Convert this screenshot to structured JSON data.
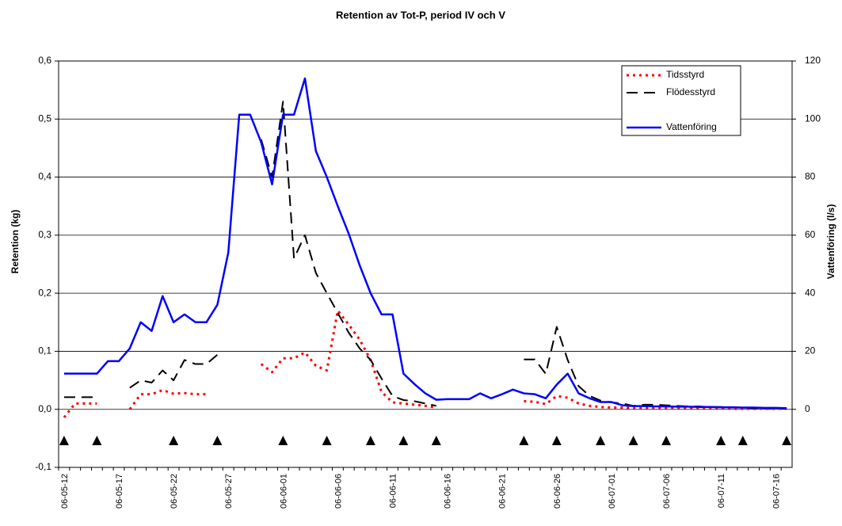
{
  "chart_data": {
    "type": "line",
    "title": "Retention av Tot-P, period IV och V",
    "ylabel": "Retention (kg)",
    "y2label": "Vattenföring (l/s)",
    "categories": [
      "06-05-12",
      null,
      null,
      null,
      null,
      "06-05-17",
      null,
      null,
      null,
      null,
      "06-05-22",
      null,
      null,
      null,
      null,
      "06-05-27",
      null,
      null,
      null,
      null,
      "06-06-01",
      null,
      null,
      null,
      null,
      "06-06-06",
      null,
      null,
      null,
      null,
      "06-06-11",
      null,
      null,
      null,
      null,
      "06-06-16",
      null,
      null,
      null,
      null,
      "06-06-21",
      null,
      null,
      null,
      null,
      "06-06-26",
      null,
      null,
      null,
      null,
      "06-07-01",
      null,
      null,
      null,
      null,
      "06-07-06",
      null,
      null,
      null,
      null,
      "06-07-11",
      null,
      null,
      null,
      null,
      "06-07-16",
      null
    ],
    "ylim": [
      -0.1,
      0.6
    ],
    "yticks": [
      {
        "value": -0.1,
        "label": "-0,1"
      },
      {
        "value": 0,
        "label": "0,0"
      },
      {
        "value": 0.1,
        "label": "0,1"
      },
      {
        "value": 0.2,
        "label": "0,2"
      },
      {
        "value": 0.3,
        "label": "0,3"
      },
      {
        "value": 0.4,
        "label": "0,4"
      },
      {
        "value": 0.5,
        "label": "0,5"
      },
      {
        "value": 0.6,
        "label": "0,6"
      }
    ],
    "y2lim": [
      -20,
      120
    ],
    "y2ticks": [
      0,
      20,
      40,
      60,
      80,
      100,
      120
    ],
    "grid": true,
    "legend": "upper right",
    "series": [
      {
        "name": "Tidsstyrd",
        "color": "#ff0000",
        "style": "dotted",
        "values": [
          -0.014,
          0.01,
          0.01,
          0.01,
          null,
          null,
          0,
          0.026,
          0.026,
          0.033,
          0.027,
          0.028,
          0.026,
          0.026,
          null,
          null,
          null,
          null,
          0.078,
          0.064,
          0.088,
          0.088,
          0.098,
          0.075,
          0.067,
          0.17,
          0.146,
          0.12,
          0.085,
          0.03,
          0.012,
          0.01,
          0.008,
          0.006,
          0.003,
          null,
          null,
          null,
          null,
          null,
          null,
          null,
          0.014,
          0.013,
          0.009,
          0.023,
          0.02,
          0.01,
          0.006,
          0.004,
          0.003,
          0.003,
          0.002,
          0.002,
          0.002,
          0.002,
          0.002,
          0.002,
          0.002,
          0.002,
          0.002,
          0.001,
          0.001,
          0.001,
          0.001,
          0.001,
          0.001
        ]
      },
      {
        "name": "Flödesstyrd",
        "color": "#000000",
        "style": "dashed",
        "values": [
          0.021,
          0.021,
          0.021,
          0.021,
          null,
          null,
          0.037,
          0.05,
          0.046,
          0.067,
          0.05,
          0.085,
          0.078,
          0.078,
          0.094,
          null,
          null,
          null,
          0.465,
          0.4,
          0.53,
          0.26,
          0.3,
          0.235,
          0.2,
          0.166,
          0.132,
          0.105,
          0.085,
          0.053,
          0.023,
          0.016,
          0.014,
          0.01,
          0.006,
          null,
          null,
          null,
          null,
          null,
          null,
          null,
          0.086,
          0.086,
          0.061,
          0.142,
          0.085,
          0.04,
          0.023,
          0.015,
          0.012,
          0.01,
          0.006,
          0.008,
          0.008,
          0.007,
          0.006,
          0.005,
          0.005,
          0.004,
          0.004,
          0.003,
          0.003,
          0.002,
          0.002,
          0.002,
          0.001
        ]
      },
      {
        "name": "Vattenföring",
        "color": "#0000ff",
        "style": "solid",
        "axis": "y2",
        "values": [
          12.3,
          12.3,
          12.3,
          12.3,
          16.6,
          16.6,
          21,
          30,
          27,
          39,
          30,
          32.7,
          30,
          30,
          36,
          54,
          101.5,
          101.5,
          92,
          77.5,
          101.5,
          101.5,
          114,
          89,
          80,
          70,
          60.5,
          49.6,
          40,
          32.7,
          32.7,
          12.3,
          8.7,
          5.5,
          3.3,
          3.5,
          3.5,
          3.5,
          5.5,
          3.8,
          5.2,
          6.8,
          5.5,
          5.2,
          3.8,
          8.5,
          12.3,
          5.5,
          3.8,
          2.5,
          2.5,
          1.4,
          1.1,
          1.1,
          1,
          1,
          0.9,
          0.9,
          0.8,
          0.8,
          0.7,
          0.7,
          0.6,
          0.6,
          0.5,
          0.5,
          0.4
        ]
      },
      {
        "color": "#000000",
        "marker": "triangle",
        "values": [
          -0.055,
          null,
          null,
          -0.055,
          null,
          null,
          null,
          null,
          null,
          null,
          -0.055,
          null,
          null,
          null,
          -0.055,
          null,
          null,
          null,
          null,
          null,
          -0.055,
          null,
          null,
          null,
          -0.055,
          null,
          null,
          null,
          -0.055,
          null,
          null,
          -0.055,
          null,
          null,
          -0.055,
          null,
          null,
          null,
          null,
          null,
          null,
          null,
          -0.055,
          null,
          null,
          -0.055,
          null,
          null,
          null,
          -0.055,
          null,
          null,
          -0.055,
          null,
          null,
          -0.055,
          null,
          null,
          null,
          null,
          -0.055,
          null,
          -0.055,
          null,
          null,
          null,
          -0.055
        ]
      }
    ]
  }
}
